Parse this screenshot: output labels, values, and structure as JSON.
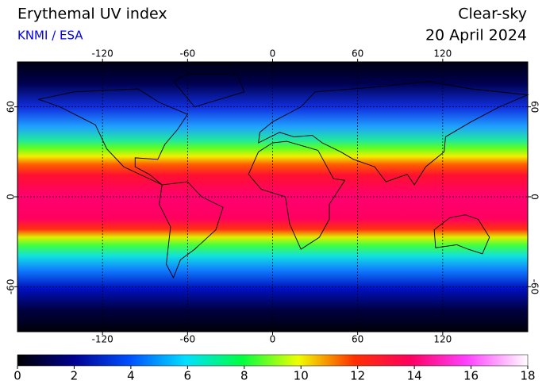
{
  "header": {
    "title": "Erythemal UV index",
    "source": "KNMI / ESA",
    "mode": "Clear-sky",
    "date": "20 April 2024"
  },
  "map": {
    "lon_range": [
      -180,
      180
    ],
    "lat_range": [
      -90,
      90
    ],
    "lon_ticks": [
      -120,
      -60,
      0,
      60,
      120
    ],
    "lat_ticks": [
      60,
      0,
      -60
    ]
  },
  "colorbar": {
    "range": [
      0,
      18
    ],
    "ticks": [
      0,
      2,
      4,
      6,
      8,
      10,
      12,
      14,
      16,
      18
    ]
  }
}
